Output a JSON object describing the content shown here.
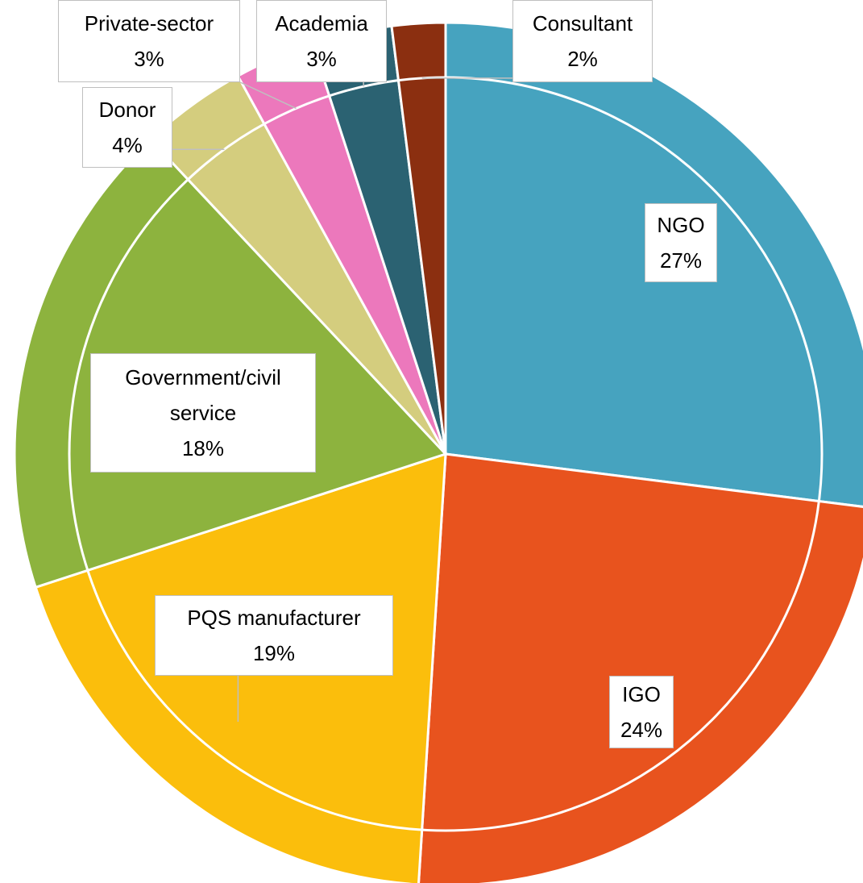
{
  "chart_data": {
    "type": "pie",
    "categories": [
      "NGO",
      "IGO",
      "PQS manufacturer",
      "Government/civil service",
      "Donor",
      "Private-sector",
      "Academia",
      "Consultant"
    ],
    "values": [
      27,
      24,
      19,
      18,
      4,
      3,
      3,
      2
    ],
    "value_labels": [
      "27%",
      "24%",
      "19%",
      "18%",
      "4%",
      "3%",
      "3%",
      "2%"
    ],
    "colors": [
      "#46a3bf",
      "#e8531e",
      "#fbbe0c",
      "#8db33e",
      "#d4cd7e",
      "#ec78bc",
      "#2b6272",
      "#8b2f10"
    ]
  }
}
